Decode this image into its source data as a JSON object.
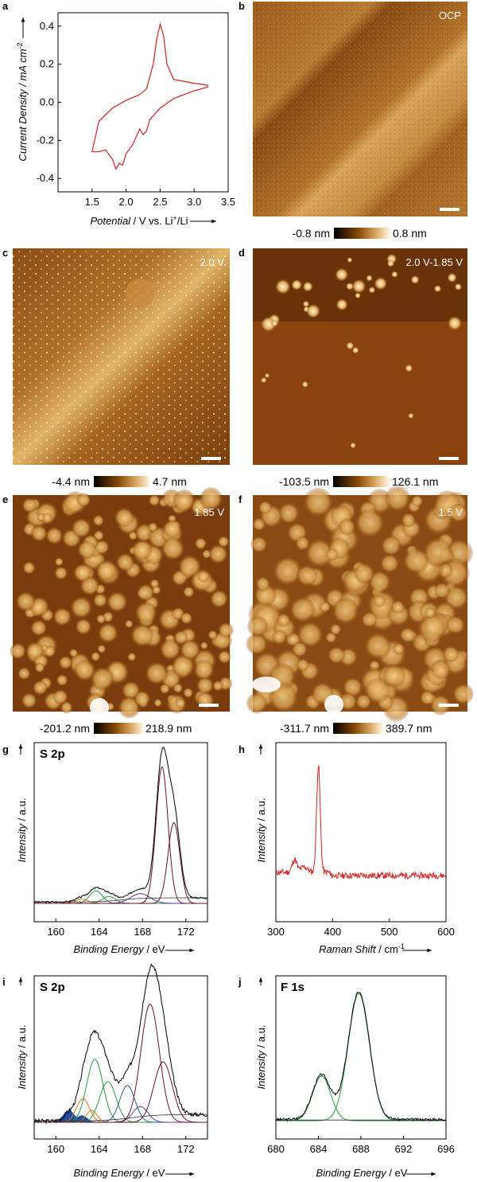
{
  "panel_letters": [
    "a",
    "b",
    "c",
    "d",
    "e",
    "f",
    "g",
    "h",
    "i",
    "j"
  ],
  "cv": {
    "ylabel": "Current Density / mA cm",
    "ylabel_sup": "-2",
    "xlabel_it": "Potential",
    "xlabel_rest": " / V vs. Li",
    "xlabel_sup": "+",
    "xlabel_end": "/Li",
    "xticks": [
      "1.5",
      "2.0",
      "2.5",
      "3.0",
      "3.5"
    ],
    "yticks": [
      "0.4",
      "0.2",
      "0.0",
      "-0.2",
      "-0.4"
    ],
    "color": "#d42020"
  },
  "afm": [
    {
      "tag": "OCP",
      "scale_min": "-0.8 nm",
      "scale_max": "0.8 nm"
    },
    {
      "tag": "2.0 V",
      "scale_min": "-4.4 nm",
      "scale_max": "4.7 nm"
    },
    {
      "tag": "2.0 V-1.85 V",
      "scale_min": "-103.5 nm",
      "scale_max": "126.1 nm"
    },
    {
      "tag": "1.85 V",
      "scale_min": "-201.2 nm",
      "scale_max": "218.9 nm"
    },
    {
      "tag": "1.5 V",
      "scale_min": "-311.7 nm",
      "scale_max": "389.7 nm"
    }
  ],
  "xps_g": {
    "title": "S 2p",
    "xlabel_it": "Binding Energy",
    "xlabel_rest": " / eV",
    "ylabel_it": "Intensity",
    "ylabel_rest": " / a.u.",
    "xticks": [
      "160",
      "164",
      "168",
      "172"
    ]
  },
  "raman_h": {
    "xlabel_it": "Raman Shift",
    "xlabel_rest": " / cm",
    "xlabel_sup": "-1",
    "ylabel_it": "Intensity",
    "ylabel_rest": " / a.u.",
    "xticks": [
      "300",
      "400",
      "500",
      "600"
    ]
  },
  "xps_i": {
    "title": "S 2p",
    "xlabel_it": "Binding Energy",
    "xlabel_rest": " / eV",
    "ylabel_it": "Intensity",
    "ylabel_rest": " / a.u.",
    "xticks": [
      "160",
      "164",
      "168",
      "172"
    ]
  },
  "xps_j": {
    "title": "F 1s",
    "xlabel_it": "Binding Energy",
    "xlabel_rest": " / eV",
    "ylabel_it": "Intensity",
    "ylabel_rest": " / a.u.",
    "xticks": [
      "680",
      "684",
      "688",
      "692",
      "696"
    ]
  },
  "chart_data": [
    {
      "type": "line",
      "ylabel": "Current Density / mA cm-2",
      "xlabel": "Potential / V vs. Li+/Li",
      "xlim": [
        1.0,
        3.5
      ],
      "ylim": [
        -0.47,
        0.47
      ],
      "series": [
        {
          "x": [
            1.5,
            1.6,
            1.7,
            1.8,
            1.85,
            1.9,
            1.95,
            2.0,
            2.1,
            2.2,
            2.25,
            2.3,
            2.35,
            2.5,
            2.7,
            3.0,
            3.2,
            3.2,
            3.0,
            2.7,
            2.6,
            2.55,
            2.5,
            2.45,
            2.4,
            2.3,
            2.2,
            2.0,
            1.8,
            1.6,
            1.5
          ],
          "y": [
            -0.26,
            -0.26,
            -0.25,
            -0.3,
            -0.35,
            -0.32,
            -0.33,
            -0.27,
            -0.22,
            -0.14,
            -0.17,
            -0.15,
            -0.09,
            -0.03,
            0.02,
            0.06,
            0.08,
            0.09,
            0.1,
            0.12,
            0.2,
            0.35,
            0.41,
            0.33,
            0.2,
            0.07,
            0.04,
            0.01,
            -0.03,
            -0.1,
            -0.26
          ]
        }
      ]
    },
    {
      "type": "line",
      "xlabel": "Binding Energy / eV",
      "ylabel": "Intensity / a.u.",
      "xlim": [
        158,
        174
      ],
      "ticks": [
        160,
        164,
        168,
        172
      ]
    },
    {
      "type": "line",
      "xlabel": "Raman Shift / cm-1",
      "ylabel": "Intensity / a.u.",
      "xlim": [
        300,
        600
      ],
      "ticks": [
        300,
        400,
        500,
        600
      ],
      "peak_x": 375
    },
    {
      "type": "line",
      "xlabel": "Binding Energy / eV",
      "ylabel": "Intensity / a.u.",
      "xlim": [
        158,
        174
      ],
      "ticks": [
        160,
        164,
        168,
        172
      ]
    },
    {
      "type": "line",
      "xlabel": "Binding Energy / eV",
      "ylabel": "Intensity / a.u.",
      "xlim": [
        680,
        696
      ],
      "ticks": [
        680,
        684,
        688,
        692,
        696
      ],
      "peaks": [
        684.3,
        687.8
      ]
    }
  ]
}
